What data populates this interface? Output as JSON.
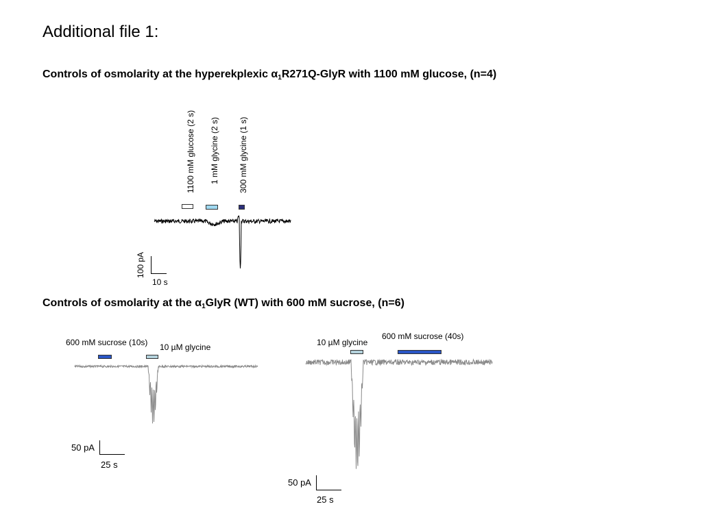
{
  "title": "Additional file 1:",
  "section1": {
    "heading_prefix": "Controls of osmolarity at the hyperekplexic α",
    "heading_sub": "1",
    "heading_suffix": "R271Q-GlyR with 1100 mM glucose, (n=4)",
    "labels": {
      "glucose": "1100 mM glucose (2 s)",
      "glycine_1mm": "1 mM glycine (2 s)",
      "glycine_300mm": "300 mM glycine (1 s)"
    },
    "bar_colors": {
      "glucose": "#ffffff",
      "glycine_1mm": "#9fd8f0",
      "glycine_300mm": "#2b2f7a"
    },
    "trace_color": "#000000",
    "scale": {
      "current": "100 pA",
      "time": "10 s"
    }
  },
  "section2": {
    "heading_prefix": "Controls of osmolarity at the α",
    "heading_sub": "1",
    "heading_suffix": "GlyR (WT) with 600 mM sucrose, (n=6)",
    "left_panel": {
      "label_sucrose": "600 mM sucrose (10s)",
      "label_glycine": "10 µM glycine",
      "bar_colors": {
        "sucrose": "#2a56c6",
        "glycine": "#b4d2dc"
      },
      "scale": {
        "current": "50 pA",
        "time": "25 s"
      }
    },
    "right_panel": {
      "label_glycine": "10 µM glycine",
      "label_sucrose": "600 mM sucrose (40s)",
      "bar_colors": {
        "sucrose": "#2a56c6",
        "glycine": "#b4d2dc"
      },
      "scale": {
        "current": "50 pA",
        "time": "25 s"
      }
    },
    "trace_color": "#8a8a8a"
  }
}
